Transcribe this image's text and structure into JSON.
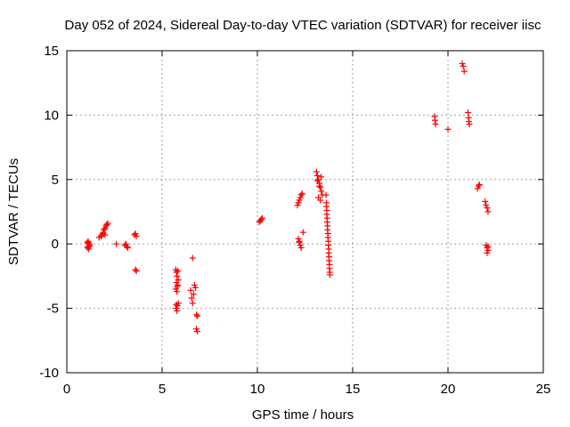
{
  "chart_data": {
    "type": "scatter",
    "title": "Day 052 of 2024, Sidereal Day-to-day VTEC variation (SDTVAR) for receiver iisc",
    "xlabel": "GPS time / hours",
    "ylabel": "SDTVAR / TECUs",
    "xlim": [
      0,
      25
    ],
    "ylim": [
      -10,
      15
    ],
    "xticks": [
      0,
      5,
      10,
      15,
      20,
      25
    ],
    "yticks": [
      -10,
      -5,
      0,
      5,
      10,
      15
    ],
    "xtick_labels": [
      "0",
      "5",
      "10",
      "15",
      "20",
      "25"
    ],
    "ytick_labels": [
      "-10",
      "-5",
      "0",
      "5",
      "10",
      "15"
    ],
    "grid": true,
    "marker": "plus",
    "color": "#ff0000",
    "series": [
      {
        "name": "SDTVAR",
        "x": [
          1.08,
          1.1,
          1.12,
          1.15,
          1.17,
          1.2,
          1.1,
          1.13,
          1.18,
          1.7,
          1.8,
          1.85,
          1.9,
          1.95,
          2.0,
          2.05,
          2.1,
          2.15,
          1.9,
          2.0,
          2.6,
          3.05,
          3.1,
          3.15,
          3.2,
          3.55,
          3.6,
          3.65,
          3.6,
          3.65,
          5.72,
          5.75,
          5.78,
          5.82,
          5.85,
          5.75,
          5.8,
          5.72,
          5.78,
          5.82,
          5.75,
          5.8,
          5.85,
          5.73,
          5.78,
          6.5,
          6.55,
          6.6,
          6.65,
          6.7,
          6.75,
          6.8,
          6.85,
          6.8,
          6.85,
          6.6,
          10.1,
          10.15,
          10.2,
          10.25,
          12.1,
          12.15,
          12.2,
          12.25,
          12.3,
          12.35,
          12.15,
          12.2,
          12.25,
          12.3,
          12.4,
          12.2,
          13.1,
          13.15,
          13.2,
          13.25,
          13.3,
          13.35,
          13.4,
          13.15,
          13.25,
          13.35,
          13.2,
          13.3,
          13.6,
          13.62,
          13.64,
          13.66,
          13.68,
          13.7,
          13.72,
          13.74,
          13.76,
          13.78,
          13.8,
          13.62,
          13.66,
          13.7,
          13.74,
          13.78,
          13.64,
          13.68,
          13.72,
          13.76,
          13.8,
          19.3,
          19.32,
          19.35,
          20.0,
          20.75,
          20.8,
          20.85,
          21.05,
          21.08,
          21.1,
          21.12,
          21.55,
          21.6,
          21.65,
          21.95,
          22.0,
          22.05,
          22.1,
          22.0,
          22.05,
          22.1,
          22.05,
          22.1
        ],
        "y": [
          0.1,
          -0.2,
          0.2,
          -0.4,
          0.0,
          -0.1,
          -0.3,
          0.1,
          -0.2,
          0.5,
          0.6,
          0.7,
          0.9,
          1.1,
          1.2,
          1.4,
          1.5,
          1.6,
          0.8,
          0.7,
          0.0,
          -0.1,
          0.0,
          -0.2,
          -0.3,
          0.7,
          0.8,
          0.6,
          -2.0,
          -2.1,
          -2.0,
          -2.2,
          -2.5,
          -2.1,
          -2.8,
          -3.0,
          -3.3,
          -3.5,
          -3.7,
          -3.2,
          -4.7,
          -4.8,
          -4.6,
          -5.0,
          -5.2,
          -3.6,
          -4.2,
          -4.6,
          -3.9,
          -3.2,
          -3.4,
          -5.5,
          -5.6,
          -6.6,
          -6.8,
          -1.1,
          1.7,
          1.8,
          1.9,
          2.0,
          3.0,
          3.2,
          3.4,
          3.6,
          3.8,
          3.9,
          0.4,
          0.1,
          -0.1,
          -0.3,
          0.9,
          0.2,
          5.6,
          5.3,
          5.0,
          4.7,
          4.4,
          4.1,
          3.8,
          4.9,
          4.5,
          5.2,
          3.6,
          3.4,
          3.8,
          3.2,
          2.6,
          2.0,
          1.4,
          0.8,
          0.2,
          -0.4,
          -1.0,
          -1.6,
          -2.2,
          2.9,
          1.7,
          0.5,
          -0.7,
          -1.9,
          2.3,
          1.1,
          -0.1,
          -1.3,
          -2.4,
          9.9,
          9.6,
          9.3,
          8.9,
          14.0,
          13.8,
          13.4,
          10.2,
          9.8,
          9.5,
          9.3,
          4.3,
          4.5,
          4.6,
          3.3,
          3.0,
          2.8,
          2.5,
          -0.1,
          -0.3,
          -0.5,
          -0.7,
          -0.2
        ]
      }
    ]
  }
}
